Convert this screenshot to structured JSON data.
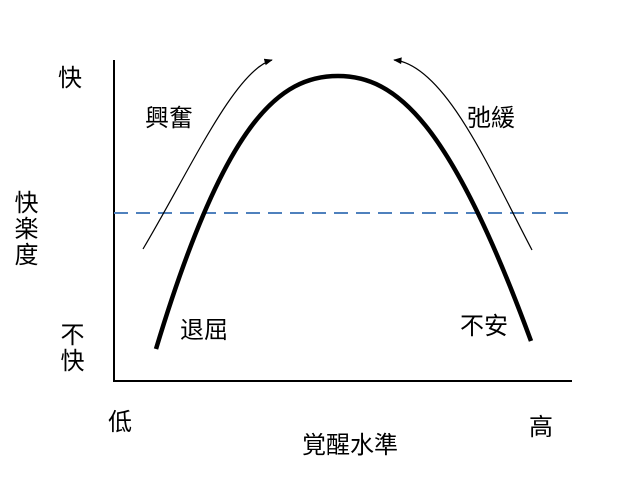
{
  "diagram": {
    "y_axis": {
      "label": "快楽度",
      "top": "快",
      "bottom": "不快"
    },
    "x_axis": {
      "label": "覚醒水準",
      "left": "低",
      "right": "高"
    },
    "regions": {
      "top_left": "興奮",
      "top_right": "弛緩",
      "bottom_left": "退屈",
      "bottom_right": "不安"
    },
    "colors": {
      "curve": "#000000",
      "threshold_line": "#4f81bd",
      "axes": "#000000"
    }
  }
}
